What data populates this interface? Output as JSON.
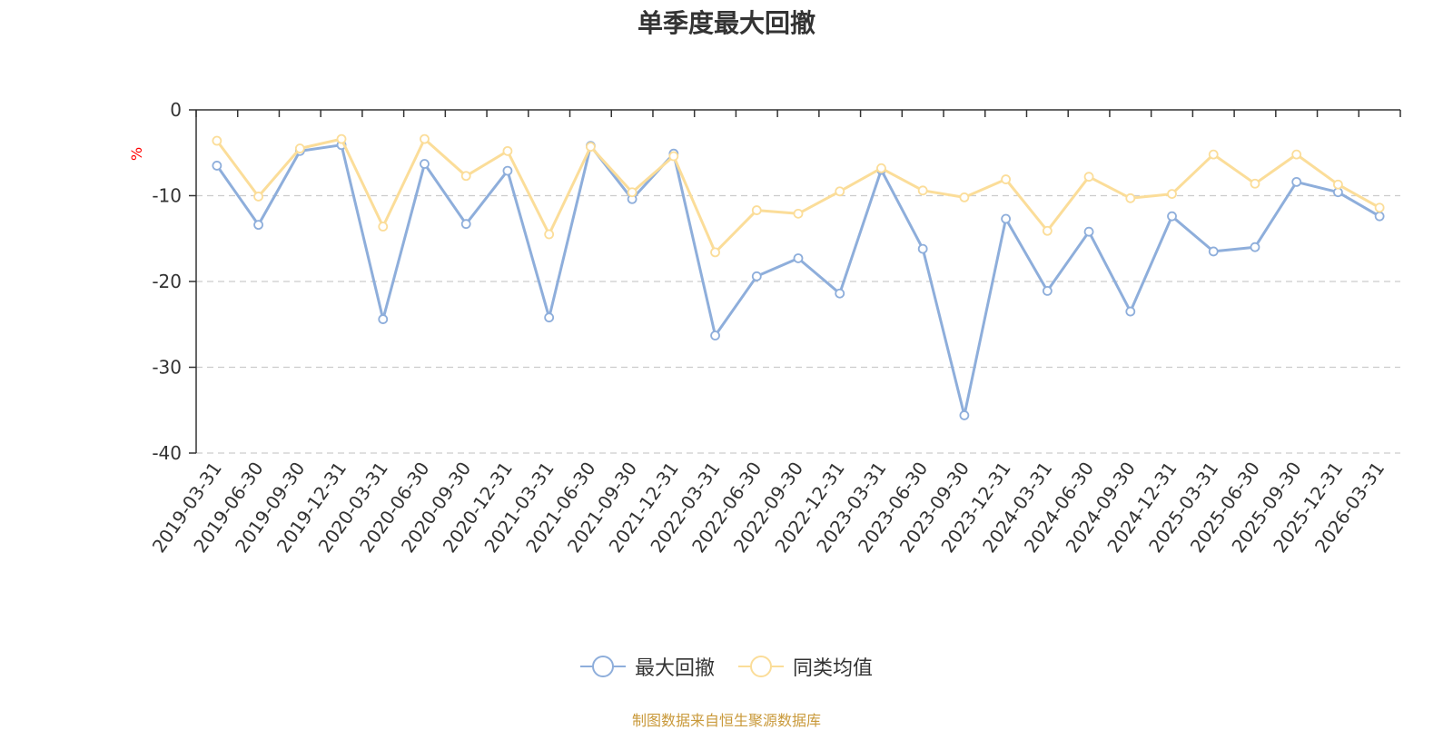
{
  "chart_data": {
    "type": "line",
    "title": "单季度最大回撤",
    "ylabel": "%",
    "xlabel": "",
    "ylim": [
      -40,
      0
    ],
    "yticks": [
      0,
      -10,
      -20,
      -30,
      -40
    ],
    "grid": true,
    "legend_position": "bottom-center",
    "categories": [
      "2019-03-31",
      "2019-06-30",
      "2019-09-30",
      "2019-12-31",
      "2020-03-31",
      "2020-06-30",
      "2020-09-30",
      "2020-12-31",
      "2021-03-31",
      "2021-06-30",
      "2021-09-30",
      "2021-12-31",
      "2022-03-31",
      "2022-06-30",
      "2022-09-30",
      "2022-12-31",
      "2023-03-31",
      "2023-06-30",
      "2023-09-30",
      "2023-12-31",
      "2024-03-31",
      "2024-06-30",
      "2024-09-30",
      "2024-12-31",
      "2025-03-31",
      "2025-06-30",
      "2025-09-30",
      "2025-12-31",
      "2026-03-31"
    ],
    "series": [
      {
        "name": "最大回撤",
        "color": "#8eaedb",
        "values": [
          -6.5,
          -13.4,
          -4.8,
          -4.1,
          -24.4,
          -6.3,
          -13.3,
          -7.1,
          -24.2,
          -4.2,
          -10.4,
          -5.1,
          -26.3,
          -19.4,
          -17.3,
          -21.4,
          -7.0,
          -16.2,
          -35.6,
          -12.7,
          -21.1,
          -14.2,
          -23.5,
          -12.4,
          -16.5,
          -16.0,
          -8.4,
          -9.6,
          -12.4
        ]
      },
      {
        "name": "同类均值",
        "color": "#fbdd99",
        "values": [
          -3.6,
          -10.1,
          -4.5,
          -3.4,
          -13.6,
          -3.4,
          -7.7,
          -4.8,
          -14.5,
          -4.3,
          -9.6,
          -5.4,
          -16.6,
          -11.7,
          -12.1,
          -9.5,
          -6.8,
          -9.4,
          -10.2,
          -8.1,
          -14.1,
          -7.8,
          -10.3,
          -9.8,
          -5.2,
          -8.6,
          -5.2,
          -8.7,
          -11.4
        ]
      }
    ]
  },
  "footer": {
    "source_note": "制图数据来自恒生聚源数据库"
  }
}
